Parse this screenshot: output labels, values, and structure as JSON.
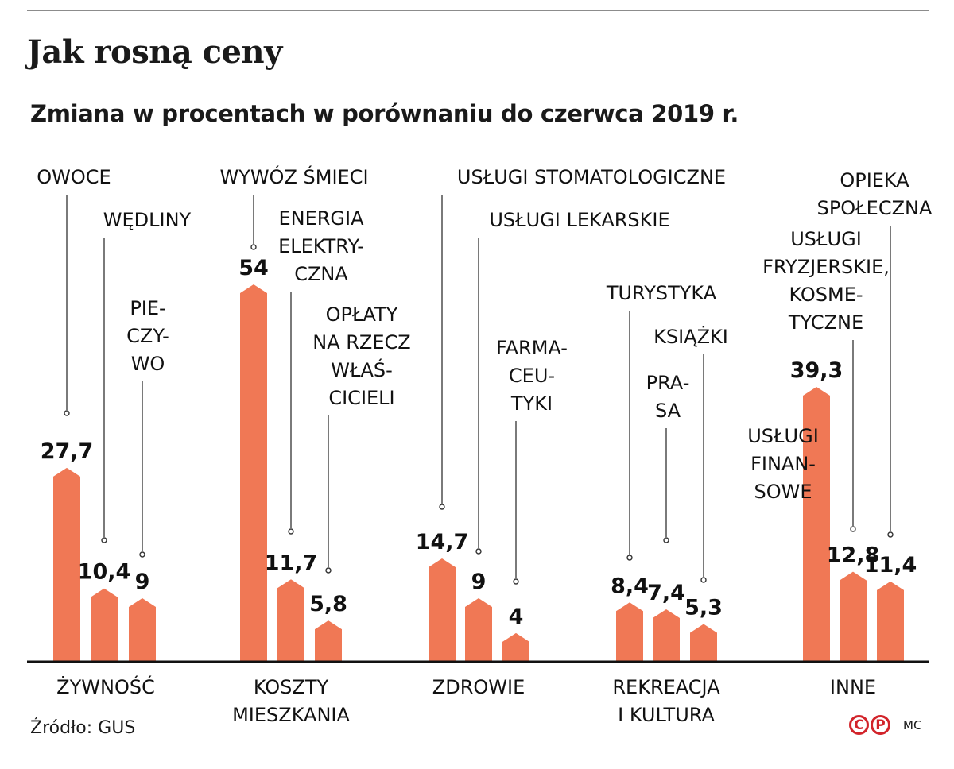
{
  "title": "Jak rosną ceny",
  "subtitle": "Zmiana w procentach w porównaniu do czerwca 2019 r.",
  "source": "Źródło: GUS",
  "credit": {
    "logo_left": "C",
    "logo_right": "P",
    "author": "MC"
  },
  "colors": {
    "bar": "#f07855",
    "axis": "#111111",
    "leader": "#333333",
    "rule": "#8c8c8c",
    "logo": "#d2232a"
  },
  "chart_data": {
    "type": "bar",
    "ylim": [
      0,
      54
    ],
    "grid": false,
    "groups": [
      {
        "name": [
          "ŻYWNOŚĆ"
        ],
        "items": [
          {
            "label": [
              "OWOCE"
            ],
            "value": 27.7,
            "value_label": "27,7"
          },
          {
            "label": [
              "WĘDLINY"
            ],
            "value": 10.4,
            "value_label": "10,4"
          },
          {
            "label": [
              "PIE-",
              "CZY-",
              "WO"
            ],
            "value": 9,
            "value_label": "9"
          }
        ]
      },
      {
        "name": [
          "KOSZTY",
          "MIESZKANIA"
        ],
        "items": [
          {
            "label": [
              "WYWÓZ ŚMIECI"
            ],
            "value": 54,
            "value_label": "54"
          },
          {
            "label": [
              "ENERGIA",
              "ELEKTRY-",
              "CZNA"
            ],
            "value": 11.7,
            "value_label": "11,7"
          },
          {
            "label": [
              "OPŁATY",
              "NA RZECZ",
              "WŁAŚ-",
              "CICIELI"
            ],
            "value": 5.8,
            "value_label": "5,8"
          }
        ]
      },
      {
        "name": [
          "ZDROWIE"
        ],
        "items": [
          {
            "label": [
              "USŁUGI STOMATOLOGICZNE"
            ],
            "value": 14.7,
            "value_label": "14,7"
          },
          {
            "label": [
              "USŁUGI LEKARSKIE"
            ],
            "value": 9,
            "value_label": "9"
          },
          {
            "label": [
              "FARMA-",
              "CEU-",
              "TYKI"
            ],
            "value": 4,
            "value_label": "4"
          }
        ]
      },
      {
        "name": [
          "REKREACJA",
          "I KULTURA"
        ],
        "items": [
          {
            "label": [
              "TURYSTYKA"
            ],
            "value": 8.4,
            "value_label": "8,4"
          },
          {
            "label": [
              "PRA-",
              "SA"
            ],
            "value": 7.4,
            "value_label": "7,4"
          },
          {
            "label": [
              "KSIĄŻKI"
            ],
            "value": 5.3,
            "value_label": "5,3"
          }
        ]
      },
      {
        "name": [
          "INNE"
        ],
        "items": [
          {
            "label": [
              "USŁUGI",
              "FINAN-",
              "SOWE"
            ],
            "value": 39.3,
            "value_label": "39,3"
          },
          {
            "label": [
              "USŁUGI",
              "FRYZJERSKIE,",
              "KOSME-",
              "TYCZNE"
            ],
            "value": 12.8,
            "value_label": "12,8"
          },
          {
            "label": [
              "OPIEKA",
              "SPOŁECZNA"
            ],
            "value": 11.4,
            "value_label": "11,4"
          }
        ]
      }
    ]
  }
}
